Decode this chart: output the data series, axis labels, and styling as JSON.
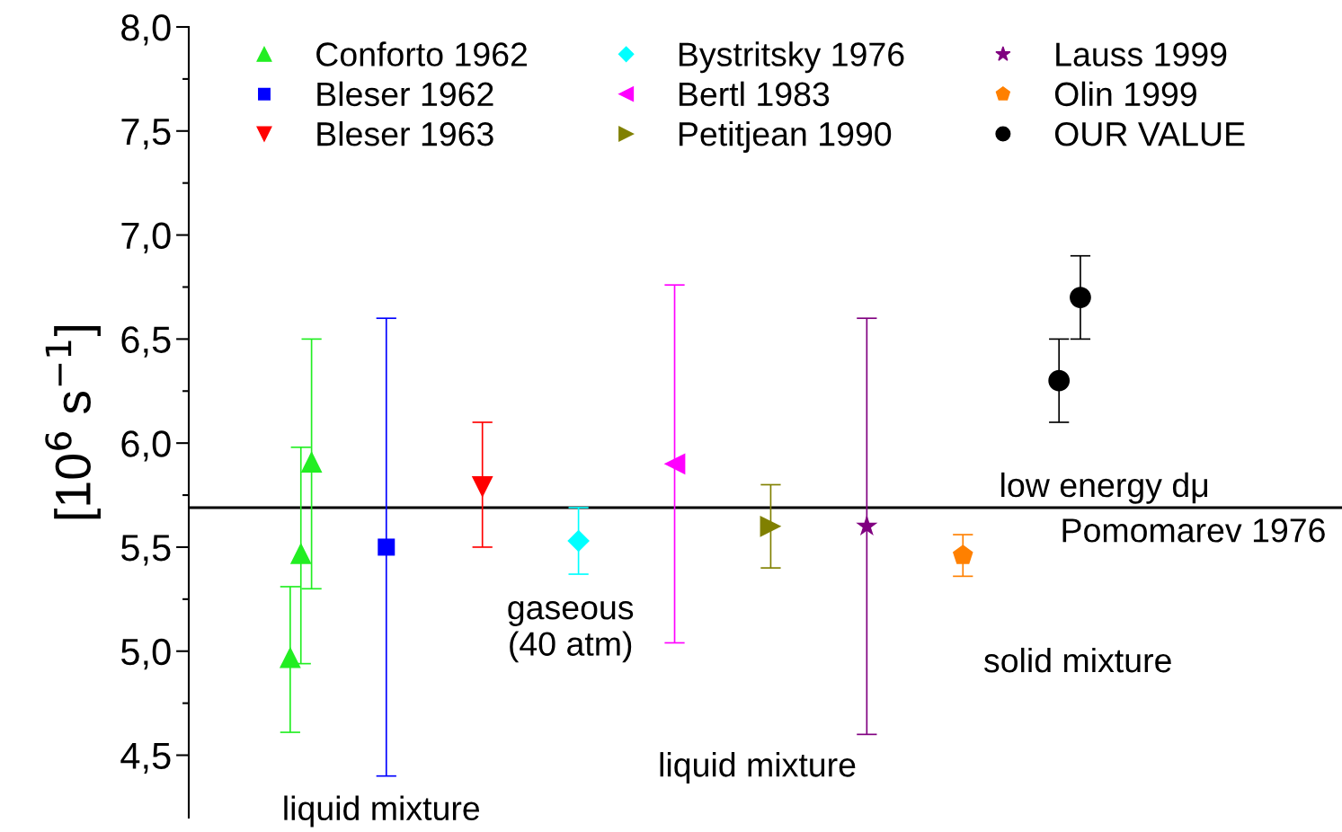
{
  "chart_data": {
    "type": "scatter",
    "ylabel": "[10$^{6}$ s$^{−1}$]",
    "categories": [
      null,
      null,
      null,
      null,
      null,
      null,
      null,
      null,
      null,
      null,
      null,
      null,
      null,
      null,
      null,
      null,
      null,
      null,
      null,
      null,
      null,
      null,
      null,
      null,
      null,
      null,
      null,
      null,
      null,
      null,
      null,
      null,
      null,
      null,
      null,
      null,
      null,
      null,
      null,
      null,
      null,
      null,
      null,
      null,
      null,
      null,
      null,
      null,
      null,
      null,
      null,
      null,
      null,
      null,
      null,
      null,
      null,
      null,
      null,
      null,
      null,
      null,
      null,
      null,
      null,
      null,
      null,
      null,
      null,
      null,
      null,
      null,
      null,
      null,
      null,
      null,
      null,
      null,
      null,
      null,
      null,
      null,
      null,
      null,
      null,
      null,
      null,
      null,
      null,
      null,
      null,
      null,
      null,
      null,
      null,
      null,
      null,
      null,
      null,
      null,
      null,
      null,
      null,
      null,
      null,
      null,
      null,
      null
    ],
    "ylim": [
      4.2,
      8.0
    ],
    "yticks": [
      {
        "value": 4.5,
        "label": "4,5"
      },
      {
        "value": 5.0,
        "label": "5,0"
      },
      {
        "value": 5.5,
        "label": "5,5"
      },
      {
        "value": 6.0,
        "label": "6,0"
      },
      {
        "value": 6.5,
        "label": "6,5"
      },
      {
        "value": 7.0,
        "label": "7,0"
      },
      {
        "value": 7.5,
        "label": "7,5"
      },
      {
        "value": 8.0,
        "label": "8,0"
      }
    ],
    "tick_labels": "y",
    "legend": "top",
    "series": [
      {
        "name": "Conforto 1962",
        "color": "#22ee22",
        "marker": "triangle",
        "values": [
          null,
          null,
          null,
          null,
          null,
          null,
          null,
          null,
          null,
          4.97,
          5.47,
          5.91,
          null,
          null,
          null,
          null,
          null,
          null,
          null,
          null,
          null,
          null,
          null,
          null,
          null,
          null,
          null,
          null,
          null,
          null,
          null,
          null,
          null,
          null,
          null,
          null,
          null,
          null,
          null,
          null,
          null,
          null,
          null,
          null,
          null,
          null,
          null,
          null,
          null,
          null,
          null,
          null,
          null,
          null,
          null,
          null,
          null,
          null,
          null,
          null,
          null,
          null,
          null,
          null,
          null,
          null,
          null,
          null,
          null,
          null,
          null,
          null,
          null,
          null,
          null,
          null,
          null,
          null,
          null,
          null,
          null,
          null,
          null,
          null,
          null,
          null,
          null,
          null,
          null,
          null,
          null,
          null,
          null,
          null,
          null,
          null,
          null,
          null,
          null,
          null,
          null,
          null,
          null,
          null,
          null,
          null,
          null,
          null
        ],
        "errors": [
          null,
          null,
          null,
          null,
          null,
          null,
          null,
          null,
          null,
          [
            4.61,
            5.31
          ],
          [
            4.94,
            5.98
          ],
          [
            5.3,
            6.5
          ],
          null,
          null,
          null,
          null,
          null,
          null,
          null,
          null,
          null,
          null,
          null,
          null,
          null,
          null,
          null,
          null,
          null,
          null,
          null,
          null,
          null,
          null,
          null,
          null,
          null,
          null,
          null,
          null,
          null,
          null,
          null,
          null,
          null,
          null,
          null,
          null,
          null,
          null,
          null,
          null,
          null,
          null,
          null,
          null,
          null,
          null,
          null,
          null,
          null,
          null,
          null,
          null,
          null,
          null,
          null,
          null,
          null,
          null,
          null,
          null,
          null,
          null,
          null,
          null,
          null,
          null,
          null,
          null,
          null,
          null,
          null,
          null,
          null,
          null,
          null,
          null,
          null,
          null,
          null,
          null,
          null,
          null,
          null,
          null,
          null,
          null,
          null,
          null,
          null,
          null,
          null,
          null,
          null,
          null,
          null,
          null
        ]
      },
      {
        "name": "Bleser 1962",
        "color": "#0000ff",
        "marker": "square",
        "values": [
          null,
          null,
          null,
          null,
          null,
          null,
          null,
          null,
          null,
          null,
          null,
          null,
          null,
          null,
          null,
          null,
          null,
          null,
          5.5,
          null,
          null,
          null,
          null,
          null,
          null,
          null,
          null,
          null,
          null,
          null,
          null,
          null,
          null,
          null,
          null,
          null,
          null,
          null,
          null,
          null,
          null,
          null,
          null,
          null,
          null,
          null,
          null,
          null,
          null,
          null,
          null,
          null,
          null,
          null,
          null,
          null,
          null,
          null,
          null,
          null,
          null,
          null,
          null,
          null,
          null,
          null,
          null,
          null,
          null,
          null,
          null,
          null,
          null,
          null,
          null,
          null,
          null,
          null,
          null,
          null,
          null,
          null,
          null,
          null,
          null,
          null,
          null,
          null,
          null,
          null,
          null,
          null,
          null,
          null,
          null,
          null,
          null,
          null,
          null,
          null,
          null,
          null,
          null,
          null,
          null,
          null,
          null,
          null
        ],
        "errors": [
          null,
          null,
          null,
          null,
          null,
          null,
          null,
          null,
          null,
          null,
          null,
          null,
          null,
          null,
          null,
          null,
          null,
          null,
          [
            4.4,
            6.6
          ],
          null,
          null,
          null,
          null,
          null,
          null,
          null,
          null,
          null,
          null,
          null,
          null,
          null,
          null,
          null,
          null,
          null,
          null,
          null,
          null,
          null,
          null,
          null,
          null,
          null,
          null,
          null,
          null,
          null,
          null,
          null,
          null,
          null,
          null,
          null,
          null,
          null,
          null,
          null,
          null,
          null,
          null,
          null,
          null,
          null,
          null,
          null,
          null,
          null,
          null,
          null,
          null,
          null,
          null,
          null,
          null,
          null,
          null,
          null,
          null,
          null,
          null,
          null,
          null,
          null,
          null,
          null,
          null,
          null,
          null,
          null,
          null,
          null,
          null,
          null,
          null,
          null,
          null,
          null,
          null,
          null,
          null,
          null,
          null,
          null,
          null,
          null,
          null,
          null
        ]
      },
      {
        "name": "Bleser 1963",
        "color": "#ff0000",
        "marker": "triangle_down",
        "values": [
          null,
          null,
          null,
          null,
          null,
          null,
          null,
          null,
          null,
          null,
          null,
          null,
          null,
          null,
          null,
          null,
          null,
          null,
          null,
          null,
          null,
          null,
          null,
          null,
          null,
          null,
          null,
          5.79,
          null,
          null,
          null,
          null,
          null,
          null,
          null,
          null,
          null,
          null,
          null,
          null,
          null,
          null,
          null,
          null,
          null,
          null,
          null,
          null,
          null,
          null,
          null,
          null,
          null,
          null,
          null,
          null,
          null,
          null,
          null,
          null,
          null,
          null,
          null,
          null,
          null,
          null,
          null,
          null,
          null,
          null,
          null,
          null,
          null,
          null,
          null,
          null,
          null,
          null,
          null,
          null,
          null,
          null,
          null,
          null,
          null,
          null,
          null,
          null,
          null,
          null,
          null,
          null,
          null,
          null,
          null,
          null,
          null,
          null,
          null,
          null,
          null,
          null,
          null,
          null,
          null,
          null,
          null,
          null
        ],
        "errors": [
          null,
          null,
          null,
          null,
          null,
          null,
          null,
          null,
          null,
          null,
          null,
          null,
          null,
          null,
          null,
          null,
          null,
          null,
          null,
          null,
          null,
          null,
          null,
          null,
          null,
          null,
          null,
          [
            5.5,
            6.1
          ],
          null,
          null,
          null,
          null,
          null,
          null,
          null,
          null,
          null,
          null,
          null,
          null,
          null,
          null,
          null,
          null,
          null,
          null,
          null,
          null,
          null,
          null,
          null,
          null,
          null,
          null,
          null,
          null,
          null,
          null,
          null,
          null,
          null,
          null,
          null,
          null,
          null,
          null,
          null,
          null,
          null,
          null,
          null,
          null,
          null,
          null,
          null,
          null,
          null,
          null,
          null,
          null,
          null,
          null,
          null,
          null,
          null,
          null,
          null,
          null,
          null,
          null,
          null,
          null,
          null,
          null,
          null,
          null,
          null,
          null,
          null,
          null,
          null,
          null,
          null,
          null,
          null,
          null,
          null,
          null
        ]
      },
      {
        "name": "Bystritsky 1976",
        "color": "#00ffff",
        "marker": "diamond",
        "values": [
          null,
          null,
          null,
          null,
          null,
          null,
          null,
          null,
          null,
          null,
          null,
          null,
          null,
          null,
          null,
          null,
          null,
          null,
          null,
          null,
          null,
          null,
          null,
          null,
          null,
          null,
          null,
          null,
          null,
          null,
          null,
          null,
          null,
          null,
          null,
          null,
          5.53,
          null,
          null,
          null,
          null,
          null,
          null,
          null,
          null,
          null,
          null,
          null,
          null,
          null,
          null,
          null,
          null,
          null,
          null,
          null,
          null,
          null,
          null,
          null,
          null,
          null,
          null,
          null,
          null,
          null,
          null,
          null,
          null,
          null,
          null,
          null,
          null,
          null,
          null,
          null,
          null,
          null,
          null,
          null,
          null,
          null,
          null,
          null,
          null,
          null,
          null,
          null,
          null,
          null,
          null,
          null,
          null,
          null,
          null,
          null,
          null,
          null,
          null,
          null,
          null,
          null,
          null,
          null,
          null,
          null,
          null,
          null
        ],
        "errors": [
          null,
          null,
          null,
          null,
          null,
          null,
          null,
          null,
          null,
          null,
          null,
          null,
          null,
          null,
          null,
          null,
          null,
          null,
          null,
          null,
          null,
          null,
          null,
          null,
          null,
          null,
          null,
          null,
          null,
          null,
          null,
          null,
          null,
          null,
          null,
          null,
          [
            5.37,
            5.69
          ],
          null,
          null,
          null,
          null,
          null,
          null,
          null,
          null,
          null,
          null,
          null,
          null,
          null,
          null,
          null,
          null,
          null,
          null,
          null,
          null,
          null,
          null,
          null,
          null,
          null,
          null,
          null,
          null,
          null,
          null,
          null,
          null,
          null,
          null,
          null,
          null,
          null,
          null,
          null,
          null,
          null,
          null,
          null,
          null,
          null,
          null,
          null,
          null,
          null,
          null,
          null,
          null,
          null,
          null,
          null,
          null,
          null,
          null,
          null,
          null,
          null,
          null,
          null,
          null,
          null,
          null,
          null,
          null,
          null,
          null,
          null
        ]
      },
      {
        "name": "Bertl 1983",
        "color": "#ff00ff",
        "marker": "triangle_left",
        "values": [
          null,
          null,
          null,
          null,
          null,
          null,
          null,
          null,
          null,
          null,
          null,
          null,
          null,
          null,
          null,
          null,
          null,
          null,
          null,
          null,
          null,
          null,
          null,
          null,
          null,
          null,
          null,
          null,
          null,
          null,
          null,
          null,
          null,
          null,
          null,
          null,
          null,
          null,
          null,
          null,
          null,
          null,
          null,
          null,
          null,
          5.9,
          null,
          null,
          null,
          null,
          null,
          null,
          null,
          null,
          null,
          null,
          null,
          null,
          null,
          null,
          null,
          null,
          null,
          null,
          null,
          null,
          null,
          null,
          null,
          null,
          null,
          null,
          null,
          null,
          null,
          null,
          null,
          null,
          null,
          null,
          null,
          null,
          null,
          null,
          null,
          null,
          null,
          null,
          null,
          null,
          null,
          null,
          null,
          null,
          null,
          null,
          null,
          null,
          null,
          null,
          null,
          null,
          null,
          null,
          null,
          null,
          null,
          null
        ],
        "errors": [
          null,
          null,
          null,
          null,
          null,
          null,
          null,
          null,
          null,
          null,
          null,
          null,
          null,
          null,
          null,
          null,
          null,
          null,
          null,
          null,
          null,
          null,
          null,
          null,
          null,
          null,
          null,
          null,
          null,
          null,
          null,
          null,
          null,
          null,
          null,
          null,
          null,
          null,
          null,
          null,
          null,
          null,
          null,
          null,
          null,
          [
            5.04,
            6.76
          ],
          null,
          null,
          null,
          null,
          null,
          null,
          null,
          null,
          null,
          null,
          null,
          null,
          null,
          null,
          null,
          null,
          null,
          null,
          null,
          null,
          null,
          null,
          null,
          null,
          null,
          null,
          null,
          null,
          null,
          null,
          null,
          null,
          null,
          null,
          null,
          null,
          null,
          null,
          null,
          null,
          null,
          null,
          null,
          null,
          null,
          null,
          null,
          null,
          null,
          null,
          null,
          null,
          null,
          null,
          null,
          null,
          null,
          null,
          null,
          null,
          null,
          null
        ]
      },
      {
        "name": "Petitjean 1990",
        "color": "#808000",
        "marker": "triangle_right",
        "values": [
          null,
          null,
          null,
          null,
          null,
          null,
          null,
          null,
          null,
          null,
          null,
          null,
          null,
          null,
          null,
          null,
          null,
          null,
          null,
          null,
          null,
          null,
          null,
          null,
          null,
          null,
          null,
          null,
          null,
          null,
          null,
          null,
          null,
          null,
          null,
          null,
          null,
          null,
          null,
          null,
          null,
          null,
          null,
          null,
          null,
          null,
          null,
          null,
          null,
          null,
          null,
          null,
          null,
          null,
          5.6,
          null,
          null,
          null,
          null,
          null,
          null,
          null,
          null,
          null,
          null,
          null,
          null,
          null,
          null,
          null,
          null,
          null,
          null,
          null,
          null,
          null,
          null,
          null,
          null,
          null,
          null,
          null,
          null,
          null,
          null,
          null,
          null,
          null,
          null,
          null,
          null,
          null,
          null,
          null,
          null,
          null,
          null,
          null,
          null,
          null,
          null,
          null,
          null,
          null,
          null,
          null,
          null,
          null
        ],
        "errors": [
          null,
          null,
          null,
          null,
          null,
          null,
          null,
          null,
          null,
          null,
          null,
          null,
          null,
          null,
          null,
          null,
          null,
          null,
          null,
          null,
          null,
          null,
          null,
          null,
          null,
          null,
          null,
          null,
          null,
          null,
          null,
          null,
          null,
          null,
          null,
          null,
          null,
          null,
          null,
          null,
          null,
          null,
          null,
          null,
          null,
          null,
          null,
          null,
          null,
          null,
          null,
          null,
          null,
          null,
          [
            5.4,
            5.8
          ],
          null,
          null,
          null,
          null,
          null,
          null,
          null,
          null,
          null,
          null,
          null,
          null,
          null,
          null,
          null,
          null,
          null,
          null,
          null,
          null,
          null,
          null,
          null,
          null,
          null,
          null,
          null,
          null,
          null,
          null,
          null,
          null,
          null,
          null,
          null,
          null,
          null,
          null,
          null,
          null,
          null,
          null,
          null,
          null,
          null,
          null,
          null,
          null,
          null,
          null,
          null,
          null,
          null
        ]
      },
      {
        "name": "Lauss 1999",
        "color": "#800080",
        "marker": "star",
        "values": [
          null,
          null,
          null,
          null,
          null,
          null,
          null,
          null,
          null,
          null,
          null,
          null,
          null,
          null,
          null,
          null,
          null,
          null,
          null,
          null,
          null,
          null,
          null,
          null,
          null,
          null,
          null,
          null,
          null,
          null,
          null,
          null,
          null,
          null,
          null,
          null,
          null,
          null,
          null,
          null,
          null,
          null,
          null,
          null,
          null,
          null,
          null,
          null,
          null,
          null,
          null,
          null,
          null,
          null,
          null,
          null,
          null,
          null,
          null,
          null,
          null,
          null,
          null,
          5.6,
          null,
          null,
          null,
          null,
          null,
          null,
          null,
          null,
          null,
          null,
          null,
          null,
          null,
          null,
          null,
          null,
          null,
          null,
          null,
          null,
          null,
          null,
          null,
          null,
          null,
          null,
          null,
          null,
          null,
          null,
          null,
          null,
          null,
          null,
          null,
          null,
          null,
          null,
          null,
          null,
          null,
          null,
          null,
          null
        ],
        "errors": [
          null,
          null,
          null,
          null,
          null,
          null,
          null,
          null,
          null,
          null,
          null,
          null,
          null,
          null,
          null,
          null,
          null,
          null,
          null,
          null,
          null,
          null,
          null,
          null,
          null,
          null,
          null,
          null,
          null,
          null,
          null,
          null,
          null,
          null,
          null,
          null,
          null,
          null,
          null,
          null,
          null,
          null,
          null,
          null,
          null,
          null,
          null,
          null,
          null,
          null,
          null,
          null,
          null,
          null,
          null,
          null,
          null,
          null,
          null,
          null,
          null,
          null,
          null,
          [
            4.6,
            6.6
          ],
          null,
          null,
          null,
          null,
          null,
          null,
          null,
          null,
          null,
          null,
          null,
          null,
          null,
          null,
          null,
          null,
          null,
          null,
          null,
          null,
          null,
          null,
          null,
          null,
          null,
          null,
          null,
          null,
          null,
          null,
          null,
          null,
          null,
          null,
          null,
          null,
          null,
          null,
          null,
          null,
          null,
          null,
          null,
          null
        ]
      },
      {
        "name": "Olin 1999",
        "color": "#ff8000",
        "values": [
          null,
          null,
          null,
          null,
          null,
          null,
          null,
          null,
          null,
          null,
          null,
          null,
          null,
          null,
          null,
          null,
          null,
          null,
          null,
          null,
          null,
          null,
          null,
          null,
          null,
          null,
          null,
          null,
          null,
          null,
          null,
          null,
          null,
          null,
          null,
          null,
          null,
          null,
          null,
          null,
          null,
          null,
          null,
          null,
          null,
          null,
          null,
          null,
          null,
          null,
          null,
          null,
          null,
          null,
          null,
          null,
          null,
          null,
          null,
          null,
          null,
          null,
          null,
          null,
          null,
          null,
          null,
          null,
          null,
          null,
          null,
          null,
          5.46,
          null,
          null,
          null,
          null,
          null,
          null,
          null,
          null,
          null,
          null,
          null,
          null,
          null,
          null,
          null,
          null,
          null,
          null,
          null,
          null,
          null,
          null,
          null,
          null,
          null,
          null,
          null,
          null,
          null,
          null,
          null,
          null,
          null,
          null,
          null
        ],
        "errors": [
          null,
          null,
          null,
          null,
          null,
          null,
          null,
          null,
          null,
          null,
          null,
          null,
          null,
          null,
          null,
          null,
          null,
          null,
          null,
          null,
          null,
          null,
          null,
          null,
          null,
          null,
          null,
          null,
          null,
          null,
          null,
          null,
          null,
          null,
          null,
          null,
          null,
          null,
          null,
          null,
          null,
          null,
          null,
          null,
          null,
          null,
          null,
          null,
          null,
          null,
          null,
          null,
          null,
          null,
          null,
          null,
          null,
          null,
          null,
          null,
          null,
          null,
          null,
          null,
          null,
          null,
          null,
          null,
          null,
          null,
          null,
          null,
          [
            5.36,
            5.56
          ],
          null,
          null,
          null,
          null,
          null,
          null,
          null,
          null,
          null,
          null,
          null,
          null,
          null,
          null,
          null,
          null,
          null,
          null,
          null,
          null,
          null,
          null,
          null,
          null,
          null,
          null,
          null,
          null,
          null,
          null,
          null,
          null,
          null,
          null,
          null
        ]
      },
      {
        "name": "OUR VALUE",
        "color": "#000000",
        "marker": "circle",
        "values": [
          null,
          null,
          null,
          null,
          null,
          null,
          null,
          null,
          null,
          null,
          null,
          null,
          null,
          null,
          null,
          null,
          null,
          null,
          null,
          null,
          null,
          null,
          null,
          null,
          null,
          null,
          null,
          null,
          null,
          null,
          null,
          null,
          null,
          null,
          null,
          null,
          null,
          null,
          null,
          null,
          null,
          null,
          null,
          null,
          null,
          null,
          null,
          null,
          null,
          null,
          null,
          null,
          null,
          null,
          null,
          null,
          null,
          null,
          null,
          null,
          null,
          null,
          null,
          null,
          null,
          null,
          null,
          null,
          null,
          null,
          null,
          null,
          null,
          null,
          null,
          null,
          null,
          null,
          null,
          null,
          null,
          6.3,
          null,
          6.7,
          null,
          null,
          null,
          null,
          null,
          null,
          null,
          null,
          null,
          null,
          null,
          null,
          null,
          null,
          null,
          null,
          null,
          null,
          null,
          null,
          null,
          null,
          null,
          null
        ],
        "errors": [
          null,
          null,
          null,
          null,
          null,
          null,
          null,
          null,
          null,
          null,
          null,
          null,
          null,
          null,
          null,
          null,
          null,
          null,
          null,
          null,
          null,
          null,
          null,
          null,
          null,
          null,
          null,
          null,
          null,
          null,
          null,
          null,
          null,
          null,
          null,
          null,
          null,
          null,
          null,
          null,
          null,
          null,
          null,
          null,
          null,
          null,
          null,
          null,
          null,
          null,
          null,
          null,
          null,
          null,
          null,
          null,
          null,
          null,
          null,
          null,
          null,
          null,
          null,
          null,
          null,
          null,
          null,
          null,
          null,
          null,
          null,
          null,
          null,
          null,
          null,
          null,
          null,
          null,
          null,
          null,
          null,
          [
            6.1,
            6.5
          ],
          null,
          [
            6.5,
            6.9
          ],
          null,
          null,
          null,
          null,
          null,
          null,
          null,
          null,
          null,
          null,
          null,
          null,
          null,
          null,
          null,
          null,
          null,
          null,
          null,
          null,
          null,
          null,
          null,
          null
        ]
      }
    ],
    "ref_lines": [
      {
        "axis": "y",
        "value": 5.69,
        "label": "low energy dμ\nPomomarev 1976",
        "color": "#000000"
      }
    ],
    "annotations": [
      "liquid mixture",
      "gaseous\n(40 atm)",
      "liquid mixture",
      "solid mixture"
    ]
  }
}
